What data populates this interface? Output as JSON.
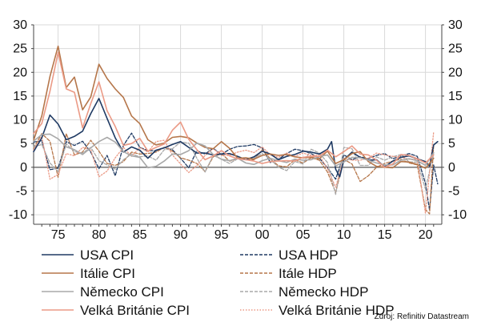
{
  "source": "Zdroj: Refinitiv Datastream",
  "colors": {
    "usa": "#1f3a63",
    "italy": "#b5764a",
    "germany": "#a8a8a8",
    "uk": "#eb9a86",
    "grid": "#d9d9d9",
    "axis": "#444444",
    "zero": "#555555"
  },
  "chart_data": {
    "type": "line",
    "title": "",
    "xlabel": "",
    "ylabel": "",
    "xlim": [
      1972,
      2022
    ],
    "ylim": [
      -12,
      30
    ],
    "x_ticks": [
      1975,
      1980,
      1985,
      1990,
      1995,
      2000,
      2005,
      2010,
      2015,
      2020
    ],
    "x_tick_labels": [
      "75",
      "80",
      "85",
      "90",
      "95",
      "00",
      "05",
      "10",
      "15",
      "20"
    ],
    "y_ticks": [
      -10,
      -5,
      0,
      5,
      10,
      15,
      20,
      25,
      30
    ],
    "y_tick_labels": [
      "-10",
      "-5",
      "0",
      "5",
      "10",
      "15",
      "20",
      "25",
      "30"
    ],
    "grid": true,
    "legend_position": "bottom",
    "series": [
      {
        "name": "USA CPI",
        "color_key": "usa",
        "style": "solid",
        "x": [
          1972,
          1973,
          1974,
          1975,
          1976,
          1977,
          1978,
          1979,
          1980,
          1981,
          1982,
          1983,
          1984,
          1985,
          1986,
          1987,
          1988,
          1989,
          1990,
          1991,
          1992,
          1993,
          1994,
          1995,
          1996,
          1997,
          1998,
          1999,
          2000,
          2001,
          2002,
          2003,
          2004,
          2005,
          2006,
          2007,
          2008,
          2008.5,
          2009,
          2009.5,
          2010,
          2011,
          2012,
          2013,
          2014,
          2015,
          2016,
          2017,
          2018,
          2019,
          2020,
          2020.5,
          2021,
          2021.5
        ],
        "y": [
          3.3,
          6.2,
          11.0,
          9.1,
          5.8,
          6.5,
          7.6,
          11.3,
          14.5,
          10.3,
          6.2,
          3.2,
          4.3,
          3.6,
          1.9,
          3.6,
          4.1,
          4.8,
          5.4,
          4.2,
          3.0,
          3.0,
          2.6,
          2.8,
          2.9,
          2.3,
          1.6,
          2.2,
          3.4,
          2.8,
          1.6,
          2.3,
          2.7,
          3.4,
          3.2,
          2.8,
          3.8,
          5.4,
          -0.4,
          -2.0,
          1.6,
          3.2,
          2.1,
          1.5,
          1.6,
          0.1,
          1.3,
          2.1,
          2.4,
          1.8,
          1.2,
          0.2,
          4.7,
          5.4
        ]
      },
      {
        "name": "Itálie  CPI",
        "color_key": "italy",
        "style": "solid",
        "x": [
          1972,
          1973,
          1974,
          1975,
          1976,
          1977,
          1978,
          1979,
          1980,
          1981,
          1982,
          1983,
          1984,
          1985,
          1986,
          1987,
          1988,
          1989,
          1990,
          1991,
          1992,
          1993,
          1994,
          1995,
          1996,
          1997,
          1998,
          1999,
          2000,
          2001,
          2002,
          2003,
          2004,
          2005,
          2006,
          2007,
          2008,
          2009,
          2010,
          2011,
          2012,
          2013,
          2014,
          2015,
          2016,
          2017,
          2018,
          2019,
          2020,
          2021
        ],
        "y": [
          5.7,
          10.8,
          19.1,
          25.5,
          16.8,
          19.0,
          12.1,
          14.8,
          21.7,
          18.7,
          16.5,
          14.7,
          10.8,
          9.2,
          5.8,
          4.7,
          5.1,
          6.3,
          6.5,
          6.2,
          5.1,
          4.2,
          3.9,
          5.4,
          4.0,
          1.9,
          2.0,
          1.7,
          2.5,
          2.8,
          2.5,
          2.7,
          2.2,
          2.0,
          2.1,
          1.8,
          3.4,
          0.8,
          1.6,
          2.9,
          3.3,
          1.2,
          0.2,
          0.0,
          -0.1,
          1.2,
          1.1,
          0.6,
          -0.2,
          1.9
        ]
      },
      {
        "name": "Německo CPI",
        "color_key": "germany",
        "style": "solid",
        "x": [
          1972,
          1973,
          1974,
          1975,
          1976,
          1977,
          1978,
          1979,
          1980,
          1981,
          1982,
          1983,
          1984,
          1985,
          1986,
          1987,
          1988,
          1989,
          1990,
          1991,
          1992,
          1993,
          1994,
          1995,
          1996,
          1997,
          1998,
          1999,
          2000,
          2001,
          2002,
          2003,
          2004,
          2005,
          2006,
          2007,
          2008,
          2009,
          2010,
          2011,
          2012,
          2013,
          2014,
          2015,
          2016,
          2017,
          2018,
          2019,
          2020,
          2021
        ],
        "y": [
          5.5,
          6.9,
          7.0,
          6.0,
          4.3,
          3.7,
          2.7,
          4.1,
          5.4,
          6.3,
          5.3,
          3.3,
          2.4,
          2.1,
          -0.1,
          0.2,
          1.3,
          2.8,
          2.7,
          3.5,
          5.1,
          4.5,
          2.7,
          1.7,
          1.4,
          1.9,
          0.9,
          0.6,
          1.4,
          1.9,
          1.4,
          1.0,
          1.7,
          1.5,
          1.6,
          2.3,
          2.6,
          0.3,
          1.1,
          2.1,
          2.0,
          1.5,
          0.9,
          0.5,
          0.5,
          1.5,
          1.8,
          1.4,
          0.4,
          3.1
        ]
      },
      {
        "name": "Velká Británie  CPI",
        "color_key": "uk",
        "style": "solid",
        "x": [
          1972,
          1973,
          1974,
          1975,
          1976,
          1977,
          1978,
          1979,
          1980,
          1981,
          1982,
          1983,
          1984,
          1985,
          1986,
          1987,
          1988,
          1989,
          1990,
          1991,
          1992,
          1993,
          1994,
          1995,
          1996,
          1997,
          1998,
          1999,
          2000,
          2001,
          2002,
          2003,
          2004,
          2005,
          2006,
          2007,
          2008,
          2009,
          2010,
          2011,
          2012,
          2013,
          2014,
          2015,
          2016,
          2017,
          2018,
          2019,
          2020,
          2021
        ],
        "y": [
          7.1,
          9.2,
          16.0,
          24.2,
          16.5,
          15.8,
          8.3,
          13.4,
          18.0,
          11.9,
          8.6,
          4.6,
          5.0,
          6.1,
          3.4,
          4.2,
          4.9,
          7.8,
          9.5,
          5.9,
          3.7,
          1.6,
          2.4,
          3.5,
          2.4,
          1.8,
          1.6,
          1.3,
          0.8,
          1.2,
          1.3,
          1.4,
          1.3,
          2.1,
          2.3,
          2.3,
          3.6,
          2.2,
          3.3,
          4.5,
          2.8,
          2.6,
          1.5,
          0.0,
          0.7,
          2.7,
          2.5,
          1.8,
          0.9,
          2.6
        ]
      },
      {
        "name": "USA HDP",
        "color_key": "usa",
        "style": "dash",
        "x": [
          1972,
          1973,
          1974,
          1975,
          1976,
          1977,
          1978,
          1979,
          1980,
          1981,
          1982,
          1983,
          1984,
          1985,
          1986,
          1987,
          1988,
          1989,
          1990,
          1991,
          1992,
          1993,
          1994,
          1995,
          1996,
          1997,
          1998,
          1999,
          2000,
          2001,
          2002,
          2003,
          2004,
          2005,
          2006,
          2007,
          2008,
          2009,
          2010,
          2011,
          2012,
          2013,
          2014,
          2015,
          2016,
          2017,
          2018,
          2019,
          2020,
          2020.5,
          2021,
          2021.5
        ],
        "y": [
          5.3,
          5.6,
          -0.5,
          -0.2,
          5.4,
          4.6,
          5.5,
          3.2,
          -0.3,
          2.5,
          -1.8,
          4.6,
          7.2,
          4.2,
          3.5,
          3.5,
          4.2,
          3.7,
          1.9,
          -0.1,
          3.5,
          2.8,
          4.0,
          2.7,
          3.8,
          4.4,
          4.5,
          4.8,
          4.1,
          1.0,
          1.7,
          2.9,
          3.8,
          3.5,
          2.9,
          1.9,
          -0.1,
          -2.5,
          2.6,
          1.6,
          2.2,
          1.8,
          2.5,
          2.9,
          1.8,
          2.4,
          2.9,
          2.3,
          -3.4,
          -9.0,
          0.5,
          -3.5
        ]
      },
      {
        "name": "Itále HDP",
        "color_key": "italy",
        "style": "dash",
        "x": [
          1972,
          1973,
          1974,
          1975,
          1976,
          1977,
          1978,
          1979,
          1980,
          1981,
          1982,
          1983,
          1984,
          1985,
          1986,
          1987,
          1988,
          1989,
          1990,
          1991,
          1992,
          1993,
          1994,
          1995,
          1996,
          1997,
          1998,
          1999,
          2000,
          2001,
          2002,
          2003,
          2004,
          2005,
          2006,
          2007,
          2008,
          2009,
          2010,
          2011,
          2012,
          2013,
          2014,
          2015,
          2016,
          2017,
          2018,
          2019,
          2020,
          2020.5,
          2021
        ],
        "y": [
          4.0,
          7.1,
          5.5,
          -2.1,
          7.1,
          2.6,
          3.2,
          5.7,
          3.4,
          0.8,
          0.4,
          1.2,
          3.2,
          2.8,
          2.9,
          3.2,
          4.2,
          3.4,
          2.0,
          1.5,
          0.8,
          -0.9,
          2.2,
          2.9,
          1.3,
          1.8,
          1.6,
          1.6,
          3.7,
          1.8,
          0.3,
          0.1,
          1.6,
          0.9,
          2.0,
          1.5,
          -1.0,
          -5.3,
          1.7,
          0.7,
          -3.0,
          -1.8,
          0.0,
          0.8,
          1.3,
          1.7,
          0.9,
          0.5,
          -8.9,
          -9.8,
          4.5
        ]
      },
      {
        "name": "Německo HDP",
        "color_key": "germany",
        "style": "dash",
        "x": [
          1972,
          1973,
          1974,
          1975,
          1976,
          1977,
          1978,
          1979,
          1980,
          1981,
          1982,
          1983,
          1984,
          1985,
          1986,
          1987,
          1988,
          1989,
          1990,
          1991,
          1992,
          1993,
          1994,
          1995,
          1996,
          1997,
          1998,
          1999,
          2000,
          2001,
          2002,
          2003,
          2004,
          2005,
          2006,
          2007,
          2008,
          2009,
          2010,
          2011,
          2012,
          2013,
          2014,
          2015,
          2016,
          2017,
          2018,
          2019,
          2020,
          2021
        ],
        "y": [
          4.3,
          4.8,
          0.9,
          -0.9,
          4.9,
          3.3,
          3.0,
          4.2,
          1.4,
          0.5,
          -0.4,
          1.6,
          2.8,
          2.2,
          2.4,
          1.5,
          3.7,
          3.9,
          5.3,
          5.1,
          1.9,
          -1.0,
          2.5,
          1.7,
          0.8,
          1.8,
          2.0,
          1.9,
          2.9,
          1.7,
          0.0,
          -0.7,
          1.2,
          0.7,
          3.8,
          3.0,
          1.0,
          -5.7,
          4.2,
          3.9,
          0.4,
          0.4,
          2.2,
          1.5,
          2.2,
          2.7,
          1.1,
          1.1,
          -4.6,
          2.9
        ]
      },
      {
        "name": "Velká Británie HDP",
        "color_key": "uk",
        "style": "dot",
        "x": [
          1972,
          1973,
          1974,
          1975,
          1976,
          1977,
          1978,
          1979,
          1980,
          1981,
          1982,
          1983,
          1984,
          1985,
          1986,
          1987,
          1988,
          1989,
          1990,
          1991,
          1992,
          1993,
          1994,
          1995,
          1996,
          1997,
          1998,
          1999,
          2000,
          2001,
          2002,
          2003,
          2004,
          2005,
          2006,
          2007,
          2008,
          2009,
          2010,
          2011,
          2012,
          2013,
          2014,
          2015,
          2016,
          2017,
          2018,
          2019,
          2020,
          2021
        ],
        "y": [
          3.6,
          6.5,
          -2.5,
          -1.5,
          2.9,
          2.4,
          4.2,
          3.7,
          -2.0,
          -0.8,
          2.0,
          4.2,
          2.3,
          4.2,
          3.2,
          5.4,
          5.7,
          2.6,
          0.7,
          -1.1,
          0.4,
          2.5,
          3.9,
          2.5,
          2.5,
          3.2,
          3.6,
          3.1,
          4.3,
          2.6,
          2.1,
          3.0,
          2.3,
          3.0,
          2.5,
          2.5,
          -0.3,
          -4.2,
          1.9,
          1.5,
          1.5,
          1.9,
          3.0,
          2.6,
          2.3,
          2.1,
          1.7,
          1.7,
          -9.7,
          7.4
        ]
      }
    ]
  }
}
